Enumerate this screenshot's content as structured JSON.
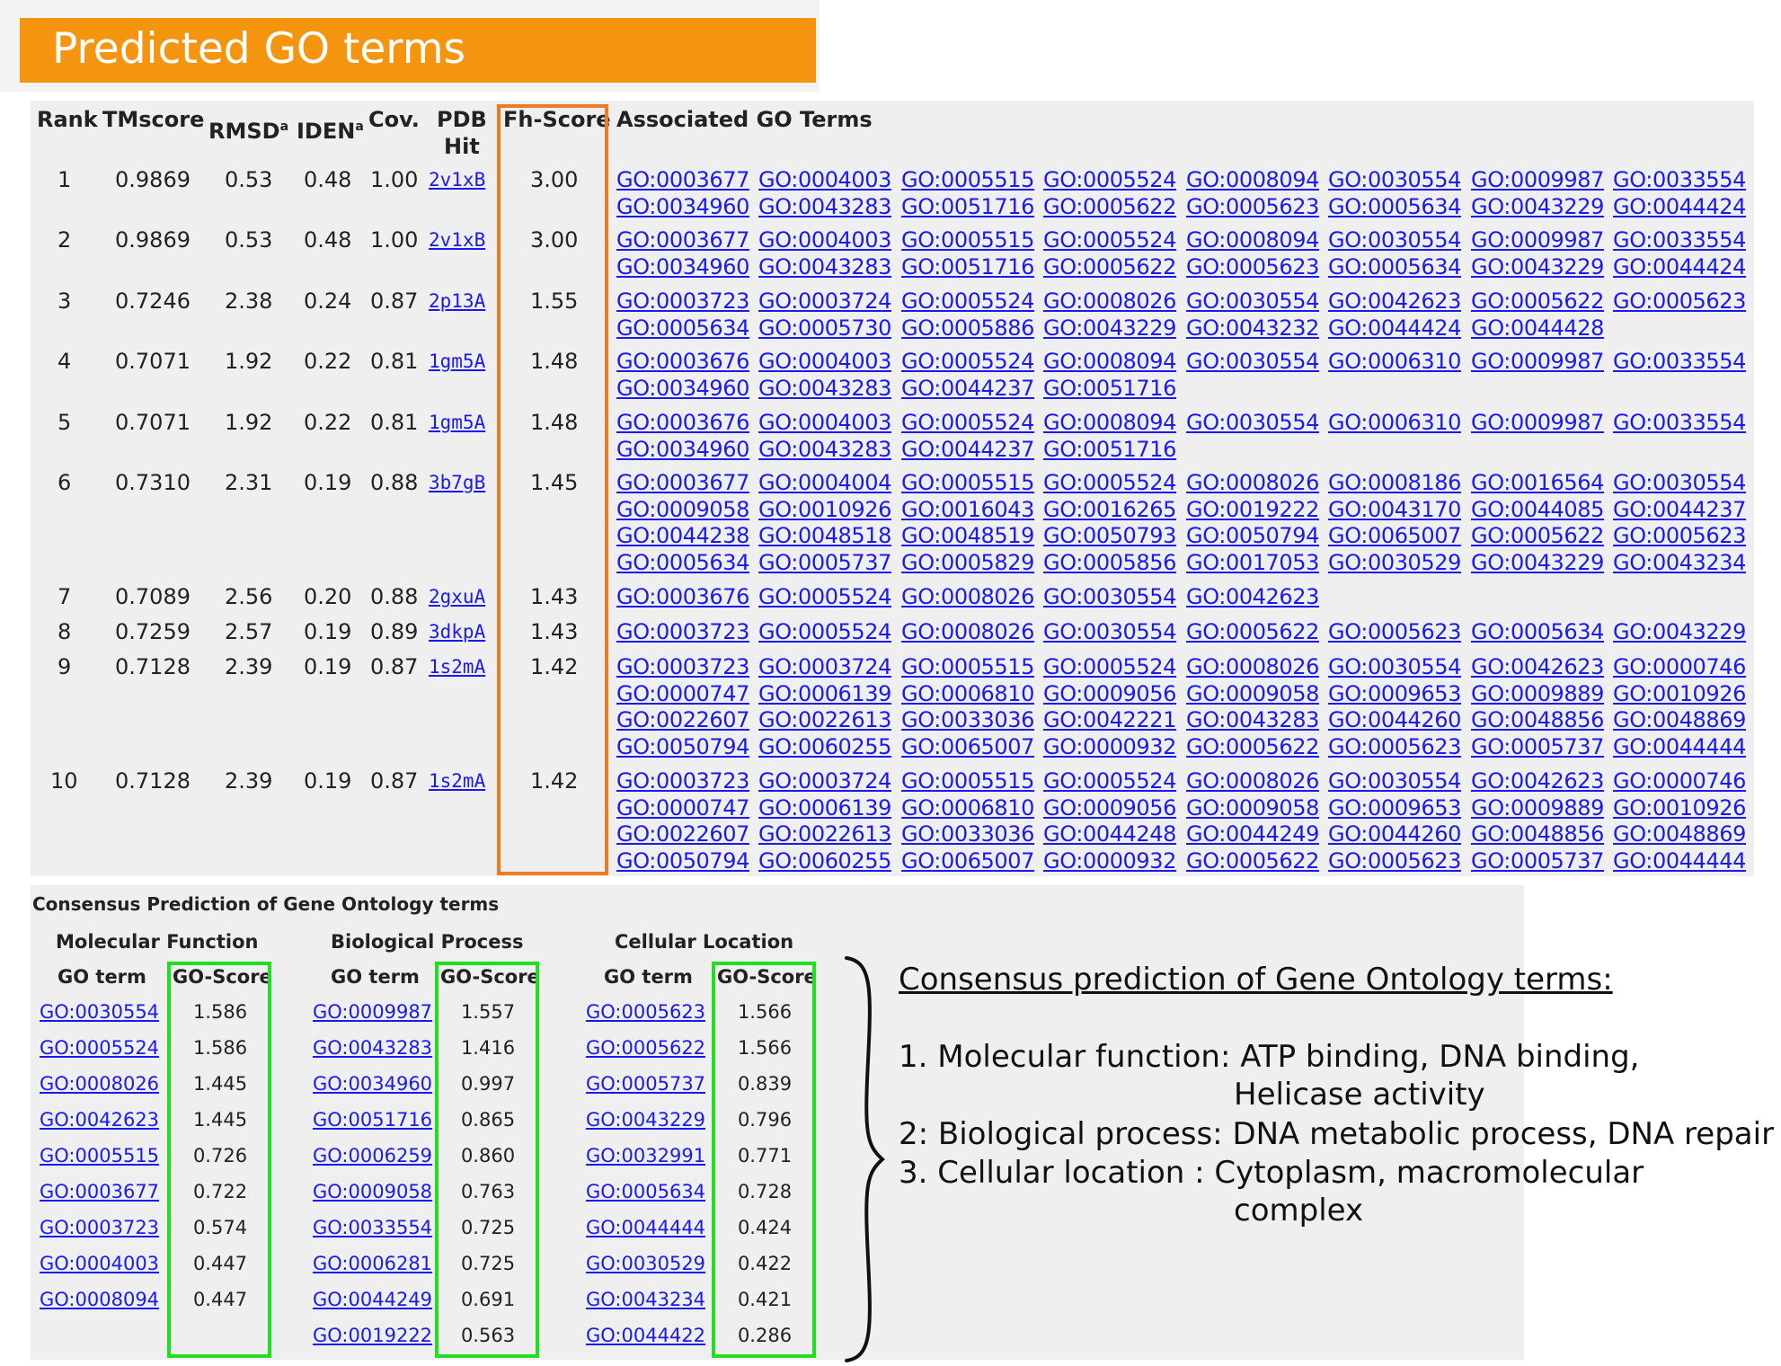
{
  "header": {
    "title": "Predicted GO terms"
  },
  "table": {
    "headers": {
      "rank": "Rank",
      "tmscore": "TMscore",
      "rmsd": "RMSD",
      "rmsd_sup": "a",
      "iden": "IDEN",
      "iden_sup": "a",
      "cov": "Cov.",
      "pdb_line1": "PDB",
      "pdb_line2": "Hit",
      "fh": "Fh-Score",
      "go": "Associated GO Terms"
    },
    "rows": [
      {
        "rank": "1",
        "tm": "0.9869",
        "rmsd": "0.53",
        "iden": "0.48",
        "cov": "1.00",
        "pdb": "2v1xB",
        "fh": "3.00",
        "go": [
          "GO:0003677",
          "GO:0004003",
          "GO:0005515",
          "GO:0005524",
          "GO:0008094",
          "GO:0030554",
          "GO:0009987",
          "GO:0033554",
          "GO:0034960",
          "GO:0043283",
          "GO:0051716",
          "GO:0005622",
          "GO:0005623",
          "GO:0005634",
          "GO:0043229",
          "GO:0044424"
        ]
      },
      {
        "rank": "2",
        "tm": "0.9869",
        "rmsd": "0.53",
        "iden": "0.48",
        "cov": "1.00",
        "pdb": "2v1xB",
        "fh": "3.00",
        "go": [
          "GO:0003677",
          "GO:0004003",
          "GO:0005515",
          "GO:0005524",
          "GO:0008094",
          "GO:0030554",
          "GO:0009987",
          "GO:0033554",
          "GO:0034960",
          "GO:0043283",
          "GO:0051716",
          "GO:0005622",
          "GO:0005623",
          "GO:0005634",
          "GO:0043229",
          "GO:0044424"
        ]
      },
      {
        "rank": "3",
        "tm": "0.7246",
        "rmsd": "2.38",
        "iden": "0.24",
        "cov": "0.87",
        "pdb": "2p13A",
        "fh": "1.55",
        "go": [
          "GO:0003723",
          "GO:0003724",
          "GO:0005524",
          "GO:0008026",
          "GO:0030554",
          "GO:0042623",
          "GO:0005622",
          "GO:0005623",
          "GO:0005634",
          "GO:0005730",
          "GO:0005886",
          "GO:0043229",
          "GO:0043232",
          "GO:0044424",
          "GO:0044428"
        ]
      },
      {
        "rank": "4",
        "tm": "0.7071",
        "rmsd": "1.92",
        "iden": "0.22",
        "cov": "0.81",
        "pdb": "1gm5A",
        "fh": "1.48",
        "go": [
          "GO:0003676",
          "GO:0004003",
          "GO:0005524",
          "GO:0008094",
          "GO:0030554",
          "GO:0006310",
          "GO:0009987",
          "GO:0033554",
          "GO:0034960",
          "GO:0043283",
          "GO:0044237",
          "GO:0051716"
        ]
      },
      {
        "rank": "5",
        "tm": "0.7071",
        "rmsd": "1.92",
        "iden": "0.22",
        "cov": "0.81",
        "pdb": "1gm5A",
        "fh": "1.48",
        "go": [
          "GO:0003676",
          "GO:0004003",
          "GO:0005524",
          "GO:0008094",
          "GO:0030554",
          "GO:0006310",
          "GO:0009987",
          "GO:0033554",
          "GO:0034960",
          "GO:0043283",
          "GO:0044237",
          "GO:0051716"
        ]
      },
      {
        "rank": "6",
        "tm": "0.7310",
        "rmsd": "2.31",
        "iden": "0.19",
        "cov": "0.88",
        "pdb": "3b7gB",
        "fh": "1.45",
        "go": [
          "GO:0003677",
          "GO:0004004",
          "GO:0005515",
          "GO:0005524",
          "GO:0008026",
          "GO:0008186",
          "GO:0016564",
          "GO:0030554",
          "GO:0009058",
          "GO:0010926",
          "GO:0016043",
          "GO:0016265",
          "GO:0019222",
          "GO:0043170",
          "GO:0044085",
          "GO:0044237",
          "GO:0044238",
          "GO:0048518",
          "GO:0048519",
          "GO:0050793",
          "GO:0050794",
          "GO:0065007",
          "GO:0005622",
          "GO:0005623",
          "GO:0005634",
          "GO:0005737",
          "GO:0005829",
          "GO:0005856",
          "GO:0017053",
          "GO:0030529",
          "GO:0043229",
          "GO:0043234"
        ]
      },
      {
        "rank": "7",
        "tm": "0.7089",
        "rmsd": "2.56",
        "iden": "0.20",
        "cov": "0.88",
        "pdb": "2gxuA",
        "fh": "1.43",
        "go": [
          "GO:0003676",
          "GO:0005524",
          "GO:0008026",
          "GO:0030554",
          "GO:0042623"
        ]
      },
      {
        "rank": "8",
        "tm": "0.7259",
        "rmsd": "2.57",
        "iden": "0.19",
        "cov": "0.89",
        "pdb": "3dkpA",
        "fh": "1.43",
        "go": [
          "GO:0003723",
          "GO:0005524",
          "GO:0008026",
          "GO:0030554",
          "GO:0005622",
          "GO:0005623",
          "GO:0005634",
          "GO:0043229"
        ]
      },
      {
        "rank": "9",
        "tm": "0.7128",
        "rmsd": "2.39",
        "iden": "0.19",
        "cov": "0.87",
        "pdb": "1s2mA",
        "fh": "1.42",
        "go": [
          "GO:0003723",
          "GO:0003724",
          "GO:0005515",
          "GO:0005524",
          "GO:0008026",
          "GO:0030554",
          "GO:0042623",
          "GO:0000746",
          "GO:0000747",
          "GO:0006139",
          "GO:0006810",
          "GO:0009056",
          "GO:0009058",
          "GO:0009653",
          "GO:0009889",
          "GO:0010926",
          "GO:0022607",
          "GO:0022613",
          "GO:0033036",
          "GO:0042221",
          "GO:0043283",
          "GO:0044260",
          "GO:0048856",
          "GO:0048869",
          "GO:0050794",
          "GO:0060255",
          "GO:0065007",
          "GO:0000932",
          "GO:0005622",
          "GO:0005623",
          "GO:0005737",
          "GO:0044444"
        ]
      },
      {
        "rank": "10",
        "tm": "0.7128",
        "rmsd": "2.39",
        "iden": "0.19",
        "cov": "0.87",
        "pdb": "1s2mA",
        "fh": "1.42",
        "go": [
          "GO:0003723",
          "GO:0003724",
          "GO:0005515",
          "GO:0005524",
          "GO:0008026",
          "GO:0030554",
          "GO:0042623",
          "GO:0000746",
          "GO:0000747",
          "GO:0006139",
          "GO:0006810",
          "GO:0009056",
          "GO:0009058",
          "GO:0009653",
          "GO:0009889",
          "GO:0010926",
          "GO:0022607",
          "GO:0022613",
          "GO:0033036",
          "GO:0044248",
          "GO:0044249",
          "GO:0044260",
          "GO:0048856",
          "GO:0048869",
          "GO:0050794",
          "GO:0060255",
          "GO:0065007",
          "GO:0000932",
          "GO:0005622",
          "GO:0005623",
          "GO:0005737",
          "GO:0044444"
        ]
      }
    ]
  },
  "consensus": {
    "title": "Consensus Prediction of Gene Ontology terms",
    "go_term_label": "GO term",
    "score_label": "GO-Score",
    "groups": [
      {
        "title": "Molecular Function",
        "items": [
          {
            "term": "GO:0030554",
            "score": "1.586"
          },
          {
            "term": "GO:0005524",
            "score": "1.586"
          },
          {
            "term": "GO:0008026",
            "score": "1.445"
          },
          {
            "term": "GO:0042623",
            "score": "1.445"
          },
          {
            "term": "GO:0005515",
            "score": "0.726"
          },
          {
            "term": "GO:0003677",
            "score": "0.722"
          },
          {
            "term": "GO:0003723",
            "score": "0.574"
          },
          {
            "term": "GO:0004003",
            "score": "0.447"
          },
          {
            "term": "GO:0008094",
            "score": "0.447"
          }
        ]
      },
      {
        "title": "Biological Process",
        "items": [
          {
            "term": "GO:0009987",
            "score": "1.557"
          },
          {
            "term": "GO:0043283",
            "score": "1.416"
          },
          {
            "term": "GO:0034960",
            "score": "0.997"
          },
          {
            "term": "GO:0051716",
            "score": "0.865"
          },
          {
            "term": "GO:0006259",
            "score": "0.860"
          },
          {
            "term": "GO:0009058",
            "score": "0.763"
          },
          {
            "term": "GO:0033554",
            "score": "0.725"
          },
          {
            "term": "GO:0006281",
            "score": "0.725"
          },
          {
            "term": "GO:0044249",
            "score": "0.691"
          },
          {
            "term": "GO:0019222",
            "score": "0.563"
          }
        ]
      },
      {
        "title": "Cellular Location",
        "items": [
          {
            "term": "GO:0005623",
            "score": "1.566"
          },
          {
            "term": "GO:0005622",
            "score": "1.566"
          },
          {
            "term": "GO:0005737",
            "score": "0.839"
          },
          {
            "term": "GO:0043229",
            "score": "0.796"
          },
          {
            "term": "GO:0032991",
            "score": "0.771"
          },
          {
            "term": "GO:0005634",
            "score": "0.728"
          },
          {
            "term": "GO:0044444",
            "score": "0.424"
          },
          {
            "term": "GO:0030529",
            "score": "0.422"
          },
          {
            "term": "GO:0043234",
            "score": "0.421"
          },
          {
            "term": "GO:0044422",
            "score": "0.286"
          }
        ]
      }
    ]
  },
  "summary": {
    "heading": "Consensus prediction of Gene Ontology terms:",
    "line1": "1. Molecular function: ATP binding, DNA binding,",
    "line1b": "Helicase activity",
    "line2": "2: Biological process: DNA metabolic process, DNA repair",
    "line3": "3. Cellular location   : Cytoplasm, macromolecular",
    "line3b": "complex"
  },
  "colors": {
    "header_orange": "#f5950f",
    "fh_box": "#f07a1f",
    "score_box": "#22dd22",
    "link": "#1a1aee",
    "panel": "#efefef"
  }
}
